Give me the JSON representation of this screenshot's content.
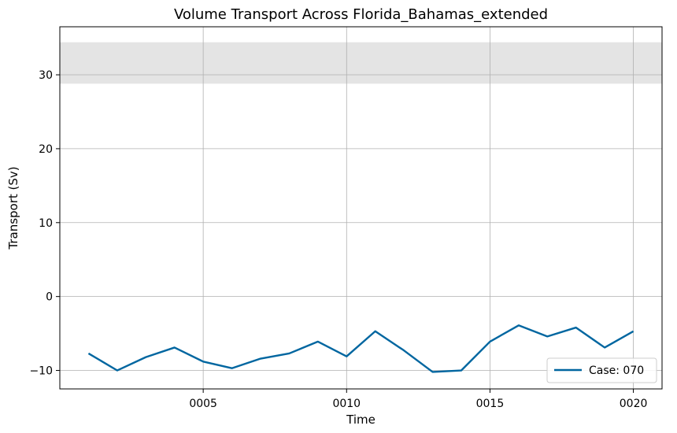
{
  "chart_data": {
    "type": "line",
    "title": "Volume Transport Across Florida_Bahamas_extended",
    "xlabel": "Time",
    "ylabel": "Transport (Sv)",
    "x": [
      1,
      2,
      3,
      4,
      5,
      6,
      7,
      8,
      9,
      10,
      11,
      12,
      13,
      14,
      15,
      16,
      17,
      18,
      19,
      20
    ],
    "xlim": [
      0.0,
      21.0
    ],
    "xticks": [
      5,
      10,
      15,
      20
    ],
    "xtick_labels": [
      "0005",
      "0010",
      "0015",
      "0020"
    ],
    "ylim": [
      -12.5,
      36.5
    ],
    "yticks": [
      -10,
      0,
      10,
      20,
      30
    ],
    "ytick_labels": [
      "−10",
      "0",
      "10",
      "20",
      "30"
    ],
    "grid": true,
    "shaded_band": {
      "y0": 28.8,
      "y1": 34.4,
      "color": "#e4e4e4"
    },
    "series": [
      {
        "name": "Case: 070",
        "color": "#0066a0",
        "values": [
          -7.7,
          -10.0,
          -8.2,
          -6.9,
          -8.8,
          -9.7,
          -8.4,
          -7.7,
          -6.1,
          -8.1,
          -4.7,
          -7.3,
          -10.2,
          -10.0,
          -6.1,
          -3.9,
          -5.4,
          -4.2,
          -6.9,
          -4.7
        ]
      }
    ],
    "legend": {
      "position": "bottom-right"
    }
  }
}
